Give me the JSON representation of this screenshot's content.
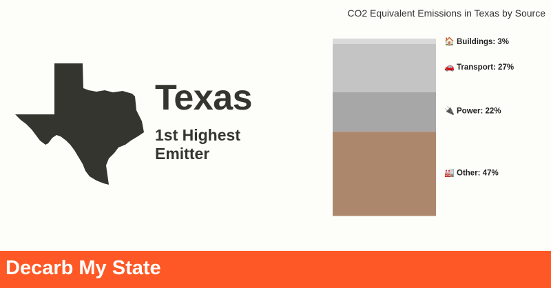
{
  "state": {
    "name": "Texas",
    "rank_line1": "1st Highest",
    "rank_line2": "Emitter"
  },
  "chart_data": {
    "type": "bar",
    "stacked": true,
    "title": "CO2 Equivalent Emissions in Texas by Source",
    "unit": "%",
    "ylim": [
      0,
      100
    ],
    "segments": [
      {
        "icon": "house-icon",
        "glyph": "🏠",
        "label": "Buildings: 3%",
        "value": 3,
        "color": "#dadada"
      },
      {
        "icon": "car-icon",
        "glyph": "🚗",
        "label": "Transport: 27%",
        "value": 27,
        "color": "#c4c4c4"
      },
      {
        "icon": "plug-icon",
        "glyph": "🔌",
        "label": "Power: 22%",
        "value": 22,
        "color": "#a7a7a7"
      },
      {
        "icon": "factory-icon",
        "glyph": "🏭",
        "label": "Other: 47%",
        "value": 47,
        "color": "#ad876c"
      }
    ]
  },
  "footer": {
    "title": "Decarb My State",
    "color": "#fd5825"
  },
  "colors": {
    "text": "#35352f",
    "background": "#fdfdfa"
  }
}
